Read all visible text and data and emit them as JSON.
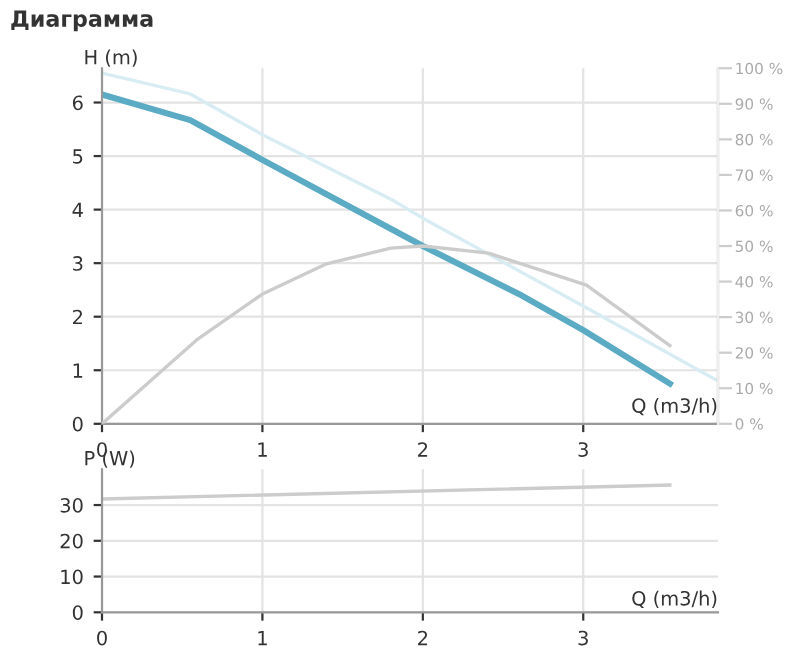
{
  "chart_data": [
    {
      "type": "line",
      "title": "Диаграмма",
      "xlabel": "Q (m3/h)",
      "ylabel": "H (m)",
      "xlim": [
        0,
        3.84
      ],
      "xticks": [
        0,
        1,
        2,
        3
      ],
      "ylim": [
        0,
        6.64
      ],
      "yticks": [
        0,
        1,
        2,
        3,
        4,
        5,
        6
      ],
      "y2lim": [
        0,
        100
      ],
      "y2ticks": [
        {
          "value": 0,
          "label": "0 %"
        },
        {
          "value": 10,
          "label": "10 %"
        },
        {
          "value": 20,
          "label": "20 %"
        },
        {
          "value": 30,
          "label": "30 %"
        },
        {
          "value": 40,
          "label": "40 %"
        },
        {
          "value": 50,
          "label": "50 %"
        },
        {
          "value": 60,
          "label": "60 %"
        },
        {
          "value": 70,
          "label": "70 %"
        },
        {
          "value": 80,
          "label": "80 %"
        },
        {
          "value": 90,
          "label": "90 %"
        },
        {
          "value": 100,
          "label": "100 %"
        }
      ],
      "grid": true,
      "marker": "none",
      "line_style": "solid",
      "series": [
        {
          "color": "#d8ecf3",
          "x": [
            0,
            0.55,
            1,
            1.81,
            2,
            3,
            3.83
          ],
          "values": [
            6.55,
            6.16,
            5.4,
            4.18,
            3.84,
            2.2,
            0.82
          ]
        },
        {
          "color": "#cccccc",
          "axis": "y2",
          "x": [
            0,
            0.59,
            1,
            1.4,
            1.8,
            2,
            2.41,
            3.02,
            3.54
          ],
          "values": [
            0,
            23.6,
            36.5,
            45,
            49.4,
            50,
            48,
            39,
            22
          ]
        },
        {
          "color": "#5aabc3",
          "x": [
            0,
            0.55,
            1,
            2,
            2.62,
            3,
            3.54
          ],
          "values": [
            6.15,
            5.67,
            4.93,
            3.32,
            2.39,
            1.75,
            0.75
          ]
        }
      ]
    },
    {
      "type": "line",
      "xlabel": "Q (m3/h)",
      "ylabel": "P (W)",
      "xlim": [
        0,
        3.84
      ],
      "xticks": [
        0,
        1,
        2,
        3
      ],
      "ylim": [
        0,
        40
      ],
      "yticks": [
        0,
        10,
        20,
        30
      ],
      "grid": true,
      "marker": "none",
      "line_style": "solid",
      "series": [
        {
          "color": "#cccccc",
          "x": [
            0,
            3.54
          ],
          "values": [
            31.7,
            35.6
          ]
        }
      ]
    }
  ]
}
